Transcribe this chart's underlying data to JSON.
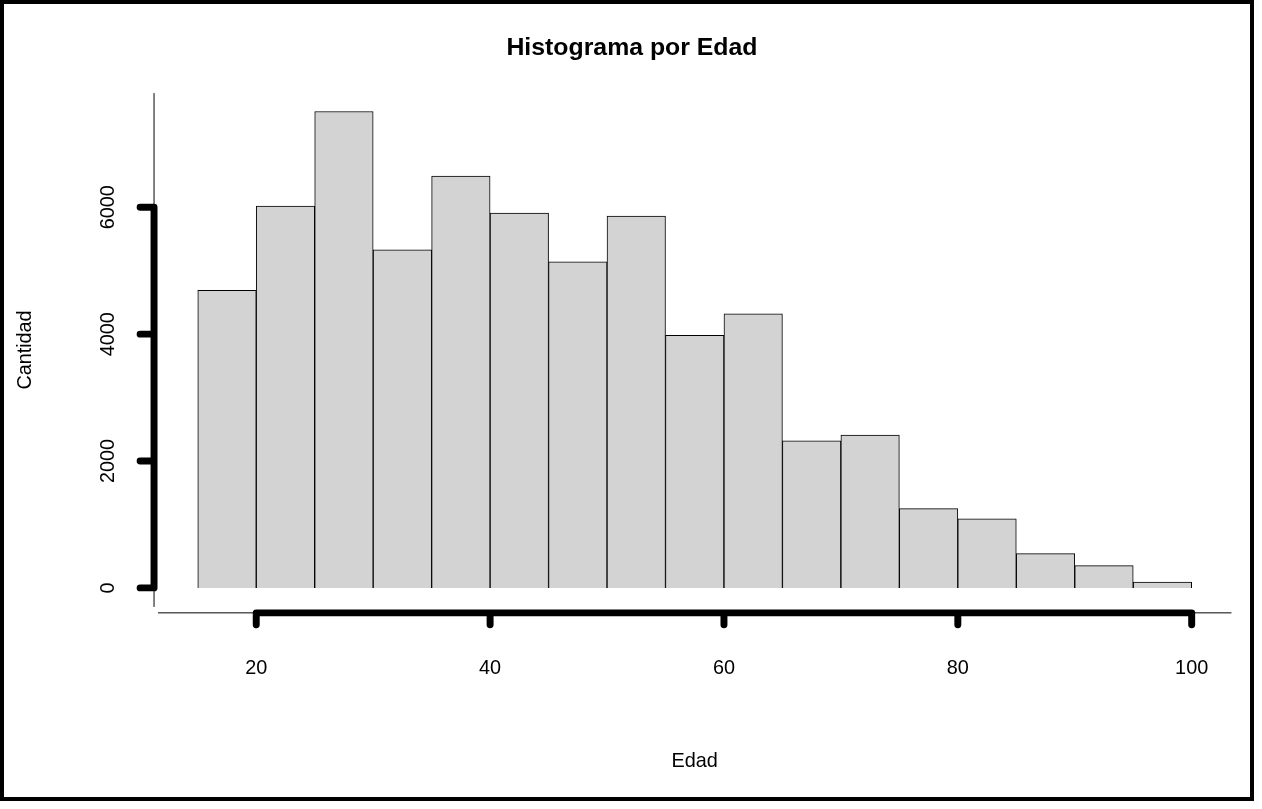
{
  "chart_data": {
    "type": "histogram",
    "title": "Histograma por Edad",
    "xlabel": "Edad",
    "ylabel": "Cantidad",
    "bins": [
      15,
      20,
      25,
      30,
      35,
      40,
      45,
      50,
      55,
      60,
      65,
      70,
      75,
      80,
      85,
      90,
      95,
      100
    ],
    "values": [
      4690,
      6020,
      7510,
      5330,
      6490,
      5910,
      5140,
      5860,
      3980,
      4320,
      2320,
      2410,
      1250,
      1090,
      540,
      350,
      90
    ],
    "color": "#d3d3d3",
    "xlim": [
      11.6,
      103.4
    ],
    "ylim": [
      -300,
      7800
    ],
    "xticks": [
      20,
      40,
      60,
      80,
      100
    ],
    "yticks": [
      0,
      2000,
      4000,
      6000
    ],
    "grid": false,
    "legend": false
  }
}
